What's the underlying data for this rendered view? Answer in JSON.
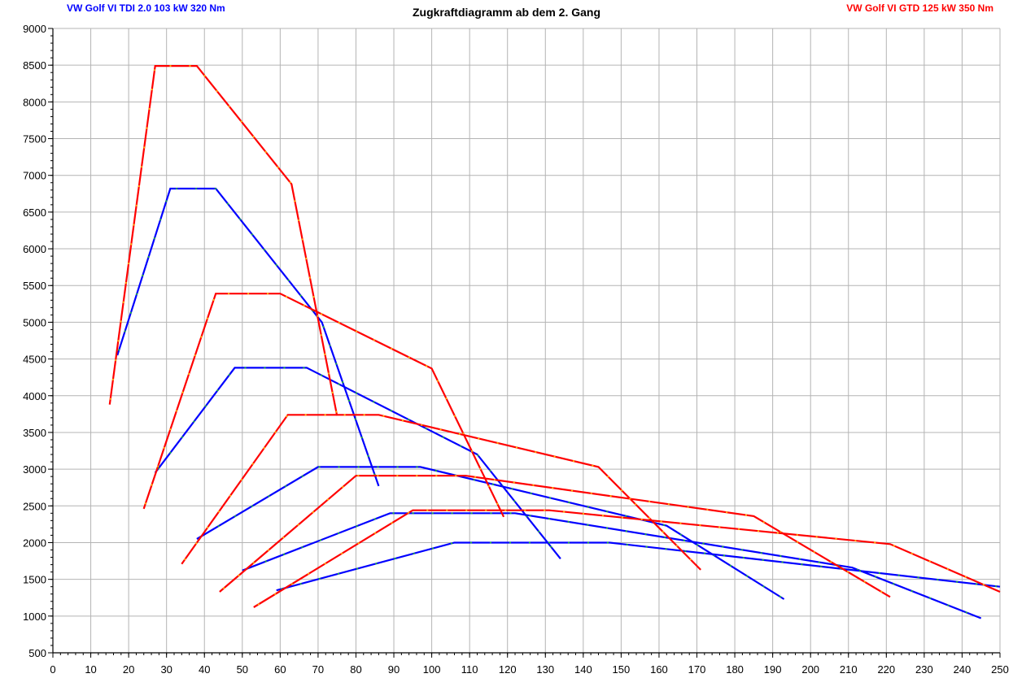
{
  "chart_data": {
    "type": "line",
    "title": "Zugkraftdiagramm ab dem 2. Gang",
    "xlabel": "",
    "ylabel": "",
    "xlim": [
      0,
      250
    ],
    "ylim": [
      500,
      9000
    ],
    "xticks": [
      0,
      10,
      20,
      30,
      40,
      50,
      60,
      70,
      80,
      90,
      100,
      110,
      120,
      130,
      140,
      150,
      160,
      170,
      180,
      190,
      200,
      210,
      220,
      230,
      240,
      250
    ],
    "yticks": [
      500,
      1000,
      1500,
      2000,
      2500,
      3000,
      3500,
      4000,
      4500,
      5000,
      5500,
      6000,
      6500,
      7000,
      7500,
      8000,
      8500,
      9000
    ],
    "grid": true,
    "legend": [
      {
        "label": "VW Golf VI TDI 2.0 103 kW 320 Nm",
        "color": "#0000ff",
        "position": "top-left"
      },
      {
        "label": "VW Golf VI GTD 125 kW 350 Nm",
        "color": "#ff0000",
        "position": "top-right"
      }
    ],
    "series": [
      {
        "car": "tdi",
        "color": "#0000ff",
        "dash": "#1ec81e",
        "points": [
          [
            17,
            4550
          ],
          [
            31,
            6820
          ],
          [
            43,
            6820
          ],
          [
            71,
            5000
          ],
          [
            86,
            2770
          ]
        ]
      },
      {
        "car": "tdi",
        "color": "#0000ff",
        "dash": "#1ec81e",
        "points": [
          [
            27,
            2950
          ],
          [
            48,
            4380
          ],
          [
            67,
            4380
          ],
          [
            112,
            3200
          ],
          [
            134,
            1780
          ]
        ]
      },
      {
        "car": "tdi",
        "color": "#0000ff",
        "dash": "#1ec81e",
        "points": [
          [
            38,
            2050
          ],
          [
            70,
            3030
          ],
          [
            97,
            3030
          ],
          [
            162,
            2230
          ],
          [
            193,
            1230
          ]
        ]
      },
      {
        "car": "tdi",
        "color": "#0000ff",
        "dash": "#1ec81e",
        "points": [
          [
            50,
            1620
          ],
          [
            89,
            2400
          ],
          [
            122,
            2400
          ],
          [
            211,
            1660
          ],
          [
            245,
            970
          ]
        ]
      },
      {
        "car": "tdi",
        "color": "#0000ff",
        "dash": "#1ec81e",
        "points": [
          [
            59,
            1350
          ],
          [
            106,
            2000
          ],
          [
            147,
            2000
          ],
          [
            250,
            1400
          ]
        ]
      },
      {
        "car": "gtd",
        "color": "#ff0000",
        "dash": "#ffc800",
        "points": [
          [
            15,
            3880
          ],
          [
            27,
            8490
          ],
          [
            38,
            8490
          ],
          [
            63,
            6880
          ],
          [
            75,
            3730
          ]
        ]
      },
      {
        "car": "gtd",
        "color": "#ff0000",
        "dash": "#ffc800",
        "points": [
          [
            24,
            2460
          ],
          [
            43,
            5390
          ],
          [
            60,
            5390
          ],
          [
            100,
            4370
          ],
          [
            119,
            2350
          ]
        ]
      },
      {
        "car": "gtd",
        "color": "#ff0000",
        "dash": "#ffc800",
        "points": [
          [
            34,
            1710
          ],
          [
            62,
            3740
          ],
          [
            86,
            3740
          ],
          [
            144,
            3030
          ],
          [
            171,
            1630
          ]
        ]
      },
      {
        "car": "gtd",
        "color": "#ff0000",
        "dash": "#ffc800",
        "points": [
          [
            44,
            1330
          ],
          [
            80,
            2910
          ],
          [
            109,
            2910
          ],
          [
            185,
            2360
          ],
          [
            221,
            1260
          ]
        ]
      },
      {
        "car": "gtd",
        "color": "#ff0000",
        "dash": "#ffc800",
        "points": [
          [
            53,
            1120
          ],
          [
            95,
            2440
          ],
          [
            131,
            2440
          ],
          [
            221,
            1980
          ],
          [
            250,
            1330
          ]
        ]
      }
    ]
  }
}
